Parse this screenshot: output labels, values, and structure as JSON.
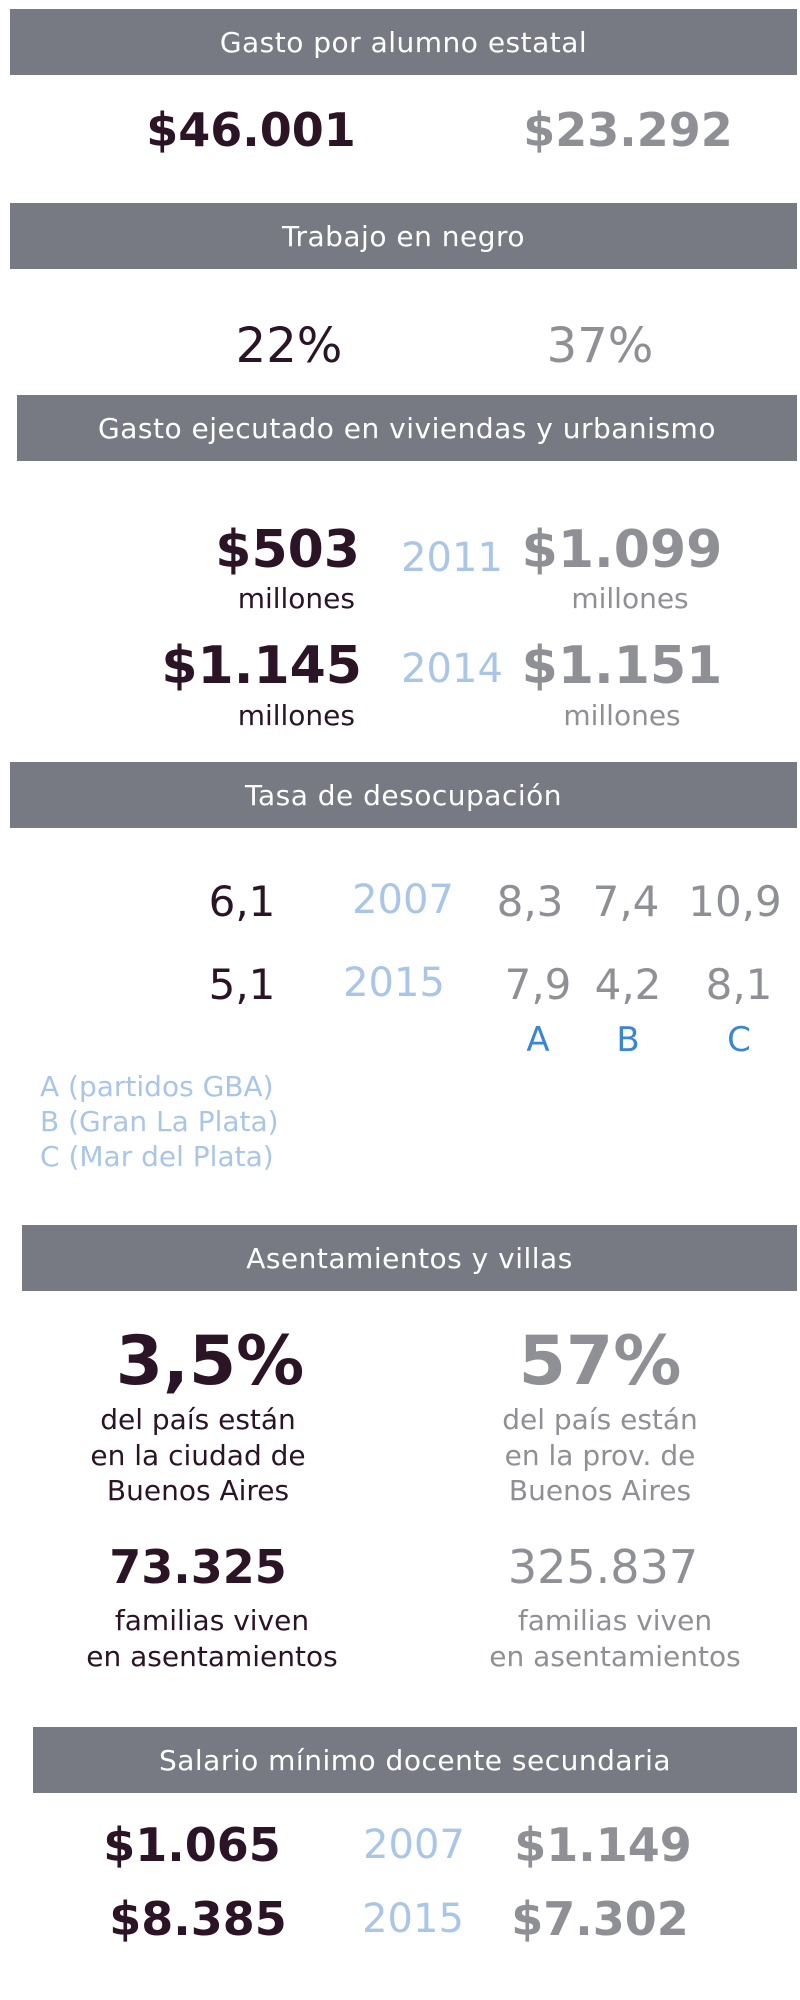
{
  "colors": {
    "band_bg": "#777a83",
    "dark": "#2a1425",
    "gray": "#8f9096",
    "light_blue": "#a9c6e6",
    "blue": "#3a86d2"
  },
  "gasto_alumno": {
    "title": "Gasto por alumno estatal",
    "left": "$46.001",
    "right": "$23.292"
  },
  "trabajo_negro": {
    "title": "Trabajo en negro",
    "left": "22%",
    "right": "37%"
  },
  "viviendas": {
    "title": "Gasto ejecutado en viviendas y urbanismo",
    "rows": [
      {
        "year": "2011",
        "left": "$503",
        "left_unit": "millones",
        "right": "$1.099",
        "right_unit": "millones"
      },
      {
        "year": "2014",
        "left": "$1.145",
        "left_unit": "millones",
        "right": "$1.151",
        "right_unit": "millones"
      }
    ]
  },
  "desocupacion": {
    "title": "Tasa de desocupación",
    "rows": [
      {
        "left": "6,1",
        "year": "2007",
        "a": "8,3",
        "b": "7,4",
        "c": "10,9"
      },
      {
        "left": "5,1",
        "year": "2015",
        "a": "7,9",
        "b": "4,2",
        "c": "8,1"
      }
    ],
    "col_labels": [
      "A",
      "B",
      "C"
    ],
    "legend": [
      "A (partidos GBA)",
      "B (Gran La Plata)",
      "C (Mar del Plata)"
    ]
  },
  "asentamientos": {
    "title": "Asentamientos y villas",
    "left_pct": "3,5%",
    "left_desc": [
      "del país están",
      "en la ciudad de",
      "Buenos Aires"
    ],
    "right_pct": "57%",
    "right_desc": [
      "del país están",
      "en la prov. de",
      "Buenos Aires"
    ],
    "left_num": "73.325",
    "left_num_desc": [
      "familias viven",
      "en asentamientos"
    ],
    "right_num": "325.837",
    "right_num_desc": [
      "familias viven",
      "en asentamientos"
    ]
  },
  "salario": {
    "title": "Salario mínimo docente secundaria",
    "rows": [
      {
        "left": "$1.065",
        "year": "2007",
        "right": "$1.149"
      },
      {
        "left": "$8.385",
        "year": "2015",
        "right": "$7.302"
      }
    ]
  }
}
